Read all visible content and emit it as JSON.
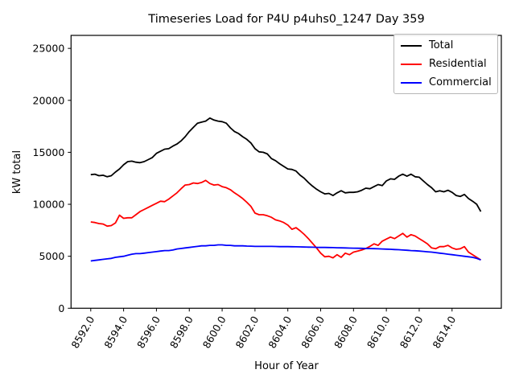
{
  "chart_data": {
    "type": "line",
    "title": "Timeseries Load for P4U p4uhs0_1247  Day 359",
    "xlabel": "Hour of Year",
    "ylabel": "kW total",
    "xlim": [
      8590.8,
      8617.0
    ],
    "ylim": [
      0,
      26250
    ],
    "grid": false,
    "legend_position": "upper right",
    "x_ticks": [
      8592,
      8594,
      8596,
      8598,
      8600,
      8602,
      8604,
      8606,
      8608,
      8610,
      8612,
      8614
    ],
    "x_tick_labels": [
      "8592.0",
      "8594.0",
      "8596.0",
      "8598.0",
      "8600.0",
      "8602.0",
      "8604.0",
      "8606.0",
      "8608.0",
      "8610.0",
      "8612.0",
      "8614.0"
    ],
    "y_ticks": [
      0,
      5000,
      10000,
      15000,
      20000,
      25000
    ],
    "y_tick_labels": [
      "0",
      "5000",
      "10000",
      "15000",
      "20000",
      "25000"
    ],
    "x_start": 8592.0,
    "x_step": 0.25,
    "series": [
      {
        "name": "Total",
        "color": "#000000",
        "values": [
          12850,
          12900,
          12750,
          12800,
          12650,
          12750,
          13100,
          13400,
          13800,
          14100,
          14150,
          14050,
          14000,
          14100,
          14300,
          14500,
          14900,
          15100,
          15300,
          15350,
          15600,
          15800,
          16100,
          16500,
          17000,
          17400,
          17800,
          17900,
          18000,
          18300,
          18100,
          18000,
          17950,
          17800,
          17350,
          17000,
          16800,
          16500,
          16250,
          15900,
          15350,
          15050,
          15000,
          14850,
          14400,
          14200,
          13900,
          13650,
          13400,
          13350,
          13200,
          12800,
          12500,
          12100,
          11750,
          11450,
          11200,
          11000,
          11050,
          10850,
          11100,
          11300,
          11100,
          11150,
          11150,
          11200,
          11350,
          11550,
          11500,
          11700,
          11900,
          11800,
          12250,
          12450,
          12400,
          12700,
          12900,
          12700,
          12900,
          12650,
          12600,
          12250,
          11900,
          11600,
          11200,
          11300,
          11200,
          11350,
          11150,
          10850,
          10750,
          10950,
          10550,
          10300,
          10000,
          9300
        ]
      },
      {
        "name": "Residential",
        "color": "#ff0000",
        "values": [
          8300,
          8250,
          8150,
          8100,
          7900,
          7950,
          8200,
          8950,
          8650,
          8700,
          8700,
          9000,
          9300,
          9500,
          9700,
          9900,
          10100,
          10300,
          10250,
          10500,
          10800,
          11100,
          11500,
          11850,
          11900,
          12050,
          12000,
          12100,
          12300,
          12000,
          11850,
          11900,
          11700,
          11600,
          11400,
          11100,
          10850,
          10550,
          10200,
          9800,
          9150,
          9000,
          9000,
          8900,
          8750,
          8500,
          8400,
          8250,
          8000,
          7600,
          7750,
          7450,
          7100,
          6700,
          6250,
          5800,
          5300,
          4950,
          5000,
          4850,
          5150,
          4900,
          5300,
          5150,
          5400,
          5500,
          5600,
          5750,
          5950,
          6200,
          6050,
          6450,
          6650,
          6850,
          6700,
          6950,
          7200,
          6850,
          7080,
          6950,
          6700,
          6450,
          6200,
          5800,
          5725,
          5925,
          5925,
          6050,
          5800,
          5670,
          5725,
          5925,
          5400,
          5150,
          4900,
          4650
        ]
      },
      {
        "name": "Commercial",
        "color": "#0000ff",
        "values": [
          4550,
          4600,
          4650,
          4700,
          4750,
          4800,
          4900,
          4950,
          5000,
          5100,
          5200,
          5250,
          5250,
          5300,
          5350,
          5400,
          5450,
          5500,
          5550,
          5550,
          5600,
          5700,
          5750,
          5800,
          5850,
          5900,
          5950,
          6000,
          6000,
          6050,
          6050,
          6100,
          6100,
          6050,
          6050,
          6000,
          6000,
          6000,
          5980,
          5975,
          5950,
          5950,
          5950,
          5950,
          5950,
          5940,
          5930,
          5930,
          5925,
          5920,
          5910,
          5900,
          5890,
          5880,
          5870,
          5860,
          5850,
          5850,
          5840,
          5830,
          5820,
          5810,
          5800,
          5790,
          5780,
          5770,
          5760,
          5750,
          5740,
          5730,
          5720,
          5700,
          5690,
          5670,
          5650,
          5630,
          5600,
          5580,
          5550,
          5530,
          5500,
          5470,
          5430,
          5400,
          5350,
          5300,
          5250,
          5200,
          5150,
          5100,
          5050,
          5000,
          4950,
          4900,
          4800,
          4650
        ]
      }
    ]
  }
}
